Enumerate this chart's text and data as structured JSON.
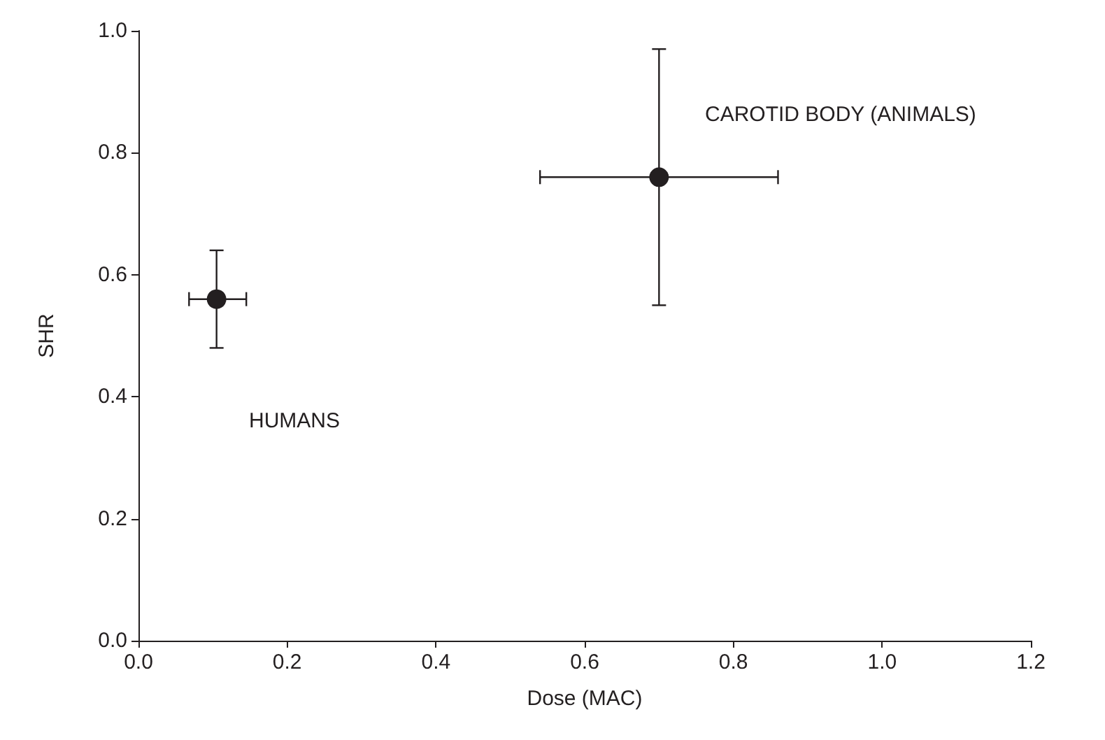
{
  "chart_data": {
    "type": "scatter",
    "xlabel": "Dose (MAC)",
    "ylabel": "SHR",
    "x": [
      0.105,
      0.7
    ],
    "values": [
      0.56,
      0.76
    ],
    "color": "#231f20",
    "errors": [
      [
        0.48,
        0.64
      ],
      [
        0.55,
        0.97
      ]
    ],
    "xerrors": [
      [
        0.068,
        0.145
      ],
      [
        0.54,
        0.86
      ]
    ],
    "marker": "circle",
    "grid": false,
    "xlim": [
      0,
      1.2
    ],
    "xticks": [
      {
        "value": 0,
        "label": "0.0"
      },
      0.2,
      0.4,
      0.6,
      0.8,
      {
        "value": 1,
        "label": "1.0"
      },
      1.2
    ],
    "ylim": [
      0,
      1
    ],
    "yticks": [
      {
        "value": 0,
        "label": "0.0"
      },
      0.2,
      0.4,
      0.6,
      0.8,
      {
        "value": 1,
        "label": "1.0"
      }
    ],
    "annotations": [
      "CAROTID BODY (ANIMALS)",
      "HUMANS"
    ]
  }
}
